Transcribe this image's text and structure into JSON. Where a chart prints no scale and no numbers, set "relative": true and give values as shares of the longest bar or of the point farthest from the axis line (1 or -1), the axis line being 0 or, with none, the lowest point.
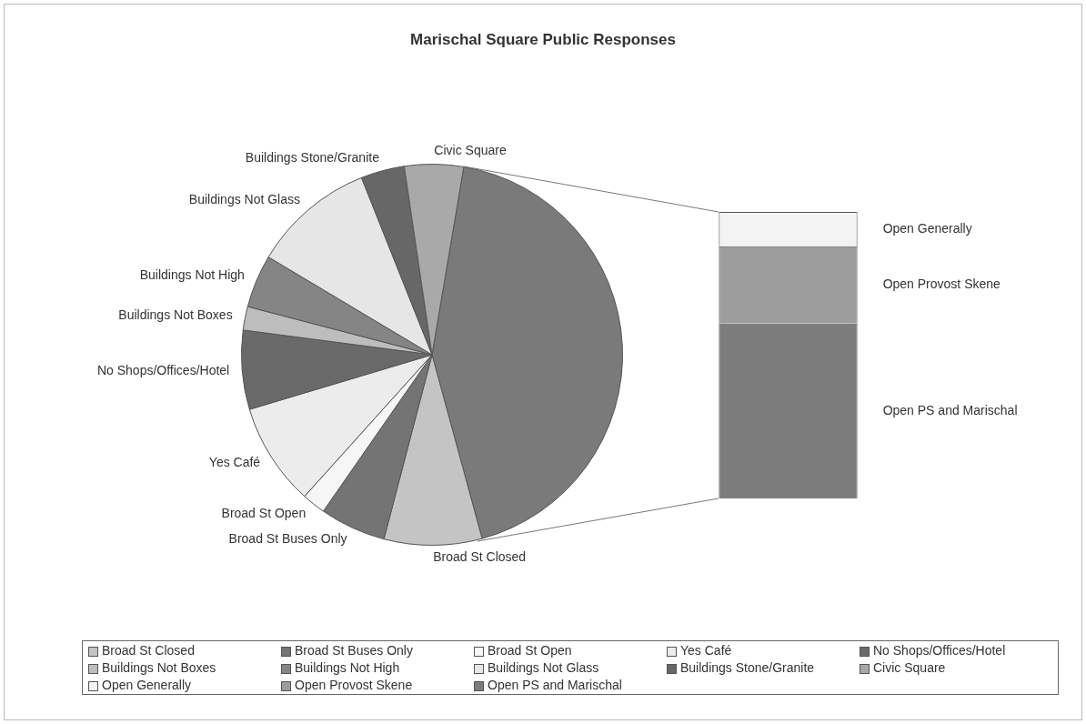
{
  "chart_data": [
    {
      "type": "pie",
      "title": "Marischal Square Public Responses",
      "categories": [
        null,
        "Broad St Closed",
        "Broad St Buses Only",
        "Broad St Open",
        "Yes Café",
        "No Shops/Offices/Hotel",
        "Buildings Not Boxes",
        "Buildings Not High",
        "Buildings Not Glass",
        "Buildings Stone/Granite",
        "Civic Square"
      ],
      "values": [
        43.1,
        8.3,
        5.6,
        2,
        8.7,
        6.7,
        2,
        4.5,
        10.4,
        3.7,
        5
      ],
      "colors": [
        "#7a7a7a",
        "#c4c4c4",
        "#747474",
        "#f6f6f6",
        "#ececec",
        "#6a6a6a",
        "#bdbdbd",
        "#858585",
        "#e6e6e6",
        "#676767",
        "#a9a9a9"
      ],
      "legend": "bottom"
    },
    {
      "type": "bar",
      "stacked": true,
      "relative": true,
      "categories": [
        null
      ],
      "series": [
        {
          "name": "Open PS and Marischal",
          "color": "#7c7c7c",
          "values": [
            0.61
          ]
        },
        {
          "name": "Open Provost Skene",
          "color": "#9d9d9d",
          "values": [
            0.27
          ]
        },
        {
          "name": "Open Generally",
          "color": "#f3f3f3",
          "values": [
            0.12
          ]
        }
      ],
      "legend": "right"
    }
  ]
}
